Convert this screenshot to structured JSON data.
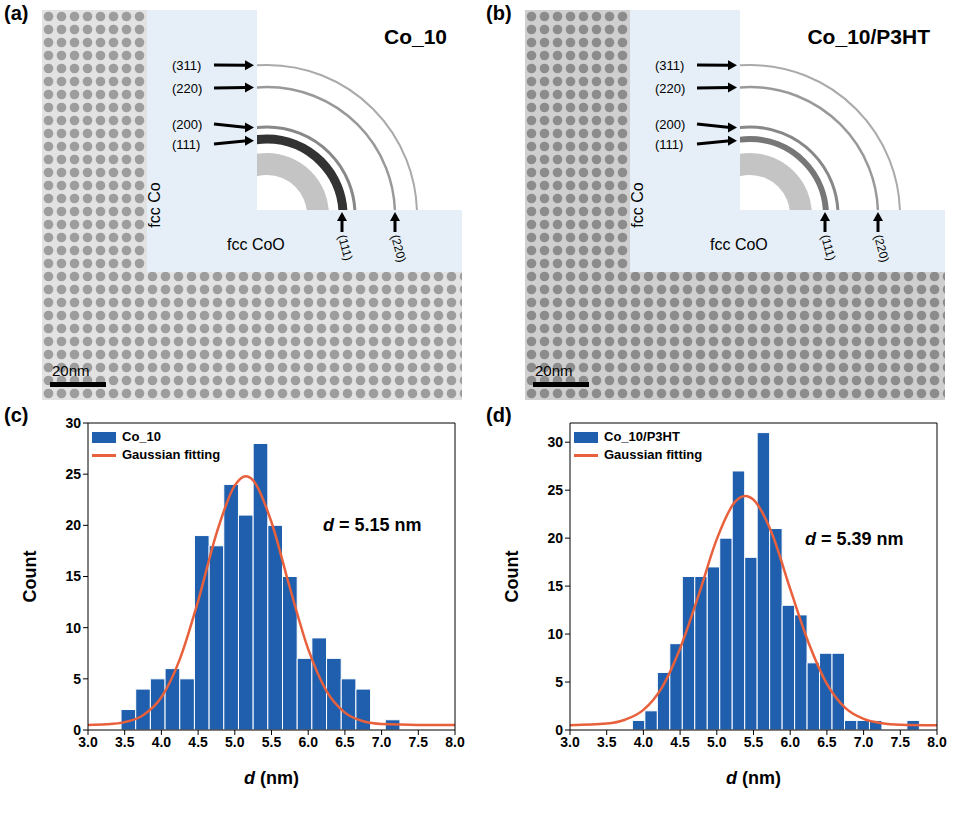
{
  "panels": [
    {
      "panel_label": "(a)",
      "title": "Co_10",
      "scale_bar": "20nm",
      "fcc_co": {
        "label": "fcc Co",
        "rings": [
          "(311)",
          "(220)",
          "(200)",
          "(111)"
        ]
      },
      "fcc_coo": {
        "label": "fcc CoO",
        "rings": [
          "(111)",
          "(220)"
        ]
      }
    },
    {
      "panel_label": "(b)",
      "title": "Co_10/P3HT",
      "scale_bar": "20nm",
      "fcc_co": {
        "label": "fcc Co",
        "rings": [
          "(311)",
          "(220)",
          "(200)",
          "(111)"
        ]
      },
      "fcc_coo": {
        "label": "fcc CoO",
        "rings": [
          "(111)",
          "(220)"
        ]
      }
    }
  ],
  "chart_data": [
    {
      "panel_label": "(c)",
      "type": "histogram",
      "name": "Co_10",
      "color": "#1f5fad",
      "bins": [
        3.45,
        3.65,
        3.85,
        4.05,
        4.25,
        4.45,
        4.65,
        4.85,
        5.05,
        5.25,
        5.45,
        5.65,
        5.85,
        6.05,
        6.25,
        6.45,
        6.65,
        6.85,
        7.05,
        7.25
      ],
      "counts": [
        2,
        4,
        5,
        6,
        5,
        19,
        18,
        24,
        21,
        28,
        20,
        15,
        7,
        9,
        7,
        5,
        4,
        0,
        1
      ],
      "curve": {
        "type": "line",
        "name": "Gaussian fitting",
        "color": "#e8603c",
        "x": [
          3.0,
          3.25,
          3.5,
          3.75,
          4.0,
          4.25,
          4.5,
          4.75,
          5.0,
          5.15,
          5.25,
          5.5,
          5.75,
          6.0,
          6.25,
          6.5,
          6.75,
          7.0,
          7.5,
          8.0
        ],
        "values": [
          0.5,
          0.56,
          0.77,
          1.45,
          3.2,
          6.9,
          12.6,
          19.2,
          23.9,
          24.8,
          24.4,
          20.3,
          13.9,
          7.9,
          3.8,
          1.7,
          0.85,
          0.58,
          0.5,
          0.5
        ]
      },
      "annotation": "d = 5.15 nm",
      "xlabel": "d (nm)",
      "ylabel": "Count",
      "xlim": [
        3,
        8
      ],
      "ylim": [
        0,
        30
      ],
      "xticks": [
        {
          "value": 3,
          "label": "3.0"
        },
        3.5,
        {
          "value": 4,
          "label": "4.0"
        },
        4.5,
        {
          "value": 5,
          "label": "5.0"
        },
        5.5,
        {
          "value": 6,
          "label": "6.0"
        },
        6.5,
        {
          "value": 7,
          "label": "7.0"
        },
        7.5,
        {
          "value": 8,
          "label": "8.0"
        }
      ],
      "yticks": [
        0,
        5,
        10,
        15,
        20,
        25,
        30
      ],
      "grid": false,
      "legend": "upper left"
    },
    {
      "panel_label": "(d)",
      "type": "histogram",
      "name": "Co_10/P3HT",
      "color": "#1f5fad",
      "bins": [
        3.85,
        4.02,
        4.19,
        4.36,
        4.53,
        4.7,
        4.87,
        5.04,
        5.21,
        5.38,
        5.55,
        5.72,
        5.89,
        6.06,
        6.23,
        6.4,
        6.57,
        6.74,
        6.91,
        7.08,
        7.25,
        7.42,
        7.59,
        7.76
      ],
      "counts": [
        1,
        2,
        6,
        9,
        16,
        16,
        17,
        20,
        27,
        18,
        31,
        21,
        13,
        12,
        7,
        8,
        8,
        1,
        1,
        1,
        0,
        0,
        1
      ],
      "curve": {
        "type": "line",
        "name": "Gaussian fitting",
        "color": "#e8603c",
        "x": [
          3.0,
          3.5,
          3.75,
          4.0,
          4.25,
          4.5,
          4.75,
          5.0,
          5.25,
          5.39,
          5.5,
          5.75,
          6.0,
          6.25,
          6.5,
          6.75,
          7.0,
          7.25,
          7.5,
          8.0
        ],
        "values": [
          0.5,
          0.67,
          1.07,
          2.1,
          4.4,
          8.5,
          14.0,
          19.9,
          23.8,
          24.4,
          24.0,
          20.5,
          14.7,
          9.1,
          4.8,
          2.3,
          1.15,
          0.7,
          0.55,
          0.5
        ]
      },
      "annotation": "d = 5.39 nm",
      "xlabel": "d (nm)",
      "ylabel": "Count",
      "xlim": [
        3,
        8
      ],
      "ylim": [
        0,
        32
      ],
      "xticks": [
        {
          "value": 3,
          "label": "3.0"
        },
        3.5,
        {
          "value": 4,
          "label": "4.0"
        },
        4.5,
        {
          "value": 5,
          "label": "5.0"
        },
        5.5,
        {
          "value": 6,
          "label": "6.0"
        },
        6.5,
        {
          "value": 7,
          "label": "7.0"
        },
        7.5,
        {
          "value": 8,
          "label": "8.0"
        }
      ],
      "yticks": [
        0,
        5,
        10,
        15,
        20,
        25,
        30
      ],
      "grid": false,
      "legend": "upper left"
    }
  ]
}
